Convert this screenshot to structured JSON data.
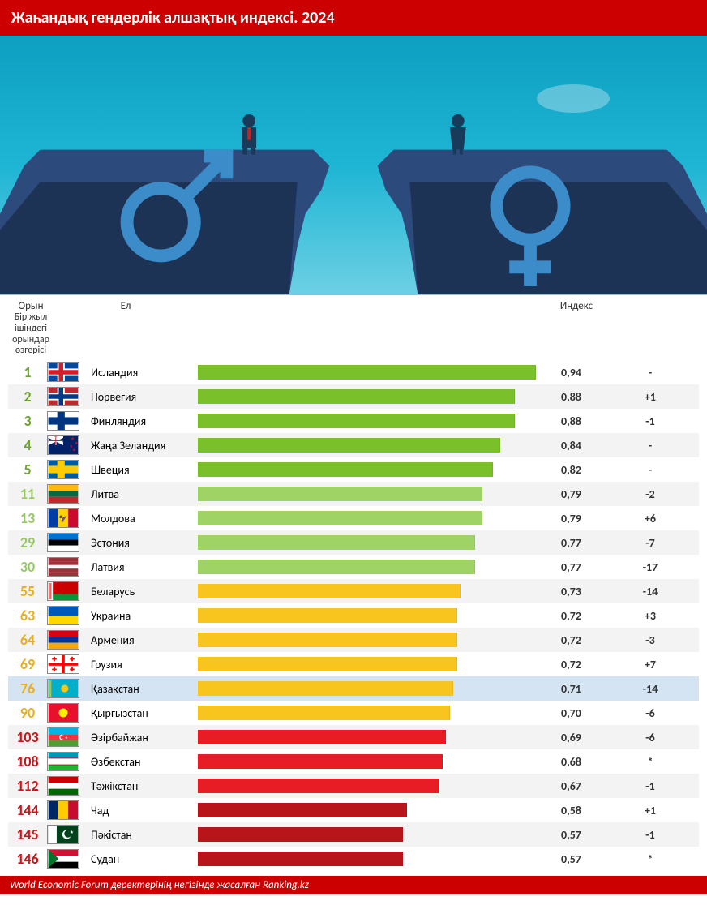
{
  "title": "Жаһандық гендерлік алшақтық индексі. 2024",
  "footer": "World Economic Forum деректерінің негізінде жасалған Ranking.kz",
  "hero": {
    "sky_gradient_top": "#0e9fc1",
    "sky_gradient_bottom": "#6dd0e4",
    "cliff_top_color": "#2d4a7c",
    "cliff_shade_color": "#1d3356",
    "male_symbol_color": "#2d7fc1",
    "female_symbol_color": "#2d7fc1",
    "man_suit_color": "#1a3a5a",
    "man_tie_color": "#cc2020",
    "woman_color": "#1a3a5a"
  },
  "columns": {
    "rank": "Орын",
    "country": "Ел",
    "index": "Индекс",
    "change": "Бір жыл ішіндегі орындар өзгерісі"
  },
  "chart": {
    "bar_max_value": 1.0,
    "rank_colors": {
      "top5": "#6aa52b",
      "light_green": "#96c864",
      "yellow": "#e8b020",
      "red": "#cc141b"
    },
    "bar_colors": {
      "green": "#7ac02a",
      "light_green": "#9fd366",
      "yellow": "#f8c41e",
      "red_bright": "#e81c24",
      "red_dark": "#b8151b"
    },
    "stripe_bg": "#f3f3f3",
    "highlight_bg": "#d5e4f3",
    "value_color": "#333333",
    "change_color": "#333333"
  },
  "rows": [
    {
      "rank": "1",
      "country": "Исландия",
      "flag": "iceland",
      "value": "0,94",
      "num": 0.94,
      "change": "-",
      "rank_color": "top5",
      "bar_color": "green"
    },
    {
      "rank": "2",
      "country": "Норвегия",
      "flag": "norway",
      "value": "0,88",
      "num": 0.88,
      "change": "+1",
      "rank_color": "top5",
      "bar_color": "green"
    },
    {
      "rank": "3",
      "country": "Финляндия",
      "flag": "finland",
      "value": "0,88",
      "num": 0.88,
      "change": "-1",
      "rank_color": "top5",
      "bar_color": "green"
    },
    {
      "rank": "4",
      "country": "Жаңа Зеландия",
      "flag": "newzealand",
      "value": "0,84",
      "num": 0.84,
      "change": "-",
      "rank_color": "top5",
      "bar_color": "green"
    },
    {
      "rank": "5",
      "country": "Швеция",
      "flag": "sweden",
      "value": "0,82",
      "num": 0.82,
      "change": "-",
      "rank_color": "top5",
      "bar_color": "green"
    },
    {
      "rank": "11",
      "country": "Литва",
      "flag": "lithuania",
      "value": "0,79",
      "num": 0.79,
      "change": "-2",
      "rank_color": "light_green",
      "bar_color": "light_green"
    },
    {
      "rank": "13",
      "country": "Молдова",
      "flag": "moldova",
      "value": "0,79",
      "num": 0.79,
      "change": "+6",
      "rank_color": "light_green",
      "bar_color": "light_green"
    },
    {
      "rank": "29",
      "country": "Эстония",
      "flag": "estonia",
      "value": "0,77",
      "num": 0.77,
      "change": "-7",
      "rank_color": "light_green",
      "bar_color": "light_green"
    },
    {
      "rank": "30",
      "country": "Латвия",
      "flag": "latvia",
      "value": "0,77",
      "num": 0.77,
      "change": "-17",
      "rank_color": "light_green",
      "bar_color": "light_green"
    },
    {
      "rank": "55",
      "country": "Беларусь",
      "flag": "belarus",
      "value": "0,73",
      "num": 0.73,
      "change": "-14",
      "rank_color": "yellow",
      "bar_color": "yellow"
    },
    {
      "rank": "63",
      "country": "Украина",
      "flag": "ukraine",
      "value": "0,72",
      "num": 0.72,
      "change": "+3",
      "rank_color": "yellow",
      "bar_color": "yellow"
    },
    {
      "rank": "64",
      "country": "Армения",
      "flag": "armenia",
      "value": "0,72",
      "num": 0.72,
      "change": "-3",
      "rank_color": "yellow",
      "bar_color": "yellow"
    },
    {
      "rank": "69",
      "country": "Грузия",
      "flag": "georgia",
      "value": "0,72",
      "num": 0.72,
      "change": "+7",
      "rank_color": "yellow",
      "bar_color": "yellow"
    },
    {
      "rank": "76",
      "country": "Қазақстан",
      "flag": "kazakhstan",
      "value": "0,71",
      "num": 0.71,
      "change": "-14",
      "rank_color": "yellow",
      "bar_color": "yellow",
      "highlight": true
    },
    {
      "rank": "90",
      "country": "Қырғызстан",
      "flag": "kyrgyzstan",
      "value": "0,70",
      "num": 0.7,
      "change": "-6",
      "rank_color": "yellow",
      "bar_color": "yellow"
    },
    {
      "rank": "103",
      "country": "Әзірбайжан",
      "flag": "azerbaijan",
      "value": "0,69",
      "num": 0.69,
      "change": "-6",
      "rank_color": "red",
      "bar_color": "red_bright"
    },
    {
      "rank": "108",
      "country": "Өзбекстан",
      "flag": "uzbekistan",
      "value": "0,68",
      "num": 0.68,
      "change": "*",
      "rank_color": "red",
      "bar_color": "red_bright"
    },
    {
      "rank": "112",
      "country": "Тәжікстан",
      "flag": "tajikistan",
      "value": "0,67",
      "num": 0.67,
      "change": "-1",
      "rank_color": "red",
      "bar_color": "red_bright"
    },
    {
      "rank": "144",
      "country": "Чад",
      "flag": "chad",
      "value": "0,58",
      "num": 0.58,
      "change": "+1",
      "rank_color": "red",
      "bar_color": "red_dark"
    },
    {
      "rank": "145",
      "country": "Пәкістан",
      "flag": "pakistan",
      "value": "0,57",
      "num": 0.57,
      "change": "-1",
      "rank_color": "red",
      "bar_color": "red_dark"
    },
    {
      "rank": "146",
      "country": "Судан",
      "flag": "sudan",
      "value": "0,57",
      "num": 0.57,
      "change": "*",
      "rank_color": "red",
      "bar_color": "red_dark"
    }
  ],
  "flags": {
    "iceland": {
      "bg": "#0048a0",
      "cross_o": "#ffffff",
      "cross_i": "#d11e29"
    },
    "norway": {
      "bg": "#ba2a2f",
      "cross_o": "#ffffff",
      "cross_i": "#003a8c"
    },
    "finland": {
      "bg": "#ffffff",
      "cross_o": "#003580",
      "cross_i": "#003580"
    },
    "sweden": {
      "bg": "#005aa0",
      "cross_o": "#fecc00",
      "cross_i": "#fecc00"
    },
    "newzealand": {
      "bg": "#012169"
    },
    "lithuania": {
      "stripes": [
        "#fdb913",
        "#006a44",
        "#c1272d"
      ]
    },
    "moldova": {
      "vstripes": [
        "#003da5",
        "#ffd200",
        "#cc092f"
      ]
    },
    "estonia": {
      "stripes": [
        "#0072ce",
        "#000000",
        "#ffffff"
      ]
    },
    "latvia": {
      "stripes5": [
        "#9e3039",
        "#9e3039",
        "#ffffff",
        "#9e3039",
        "#9e3039"
      ]
    },
    "belarus": {
      "left": "#cc0000",
      "right_top": "#009739",
      "bg": "#cc0000"
    },
    "ukraine": {
      "stripes": [
        "#0057b7",
        "#ffd700"
      ]
    },
    "armenia": {
      "stripes": [
        "#d90012",
        "#0033a0",
        "#f2a800"
      ]
    },
    "georgia": {
      "bg": "#ffffff",
      "cross": "#ff0000"
    },
    "kazakhstan": {
      "bg": "#00afca",
      "sun": "#fec50c"
    },
    "kyrgyzstan": {
      "bg": "#e8112d",
      "sun": "#ffef00"
    },
    "azerbaijan": {
      "stripes": [
        "#00b5e2",
        "#ef3340",
        "#509e2f"
      ]
    },
    "uzbekistan": {
      "stripes": [
        "#1eb53a",
        "#ffffff",
        "#0099b5"
      ],
      "thin": "#ce1126"
    },
    "tajikistan": {
      "stripes": [
        "#cc0000",
        "#ffffff",
        "#006600"
      ]
    },
    "chad": {
      "vstripes": [
        "#002664",
        "#fecb00",
        "#c60c30"
      ]
    },
    "pakistan": {
      "bg": "#01411c",
      "left": "#ffffff"
    },
    "sudan": {
      "stripes": [
        "#d21034",
        "#ffffff",
        "#000000"
      ],
      "tri": "#007229"
    }
  }
}
